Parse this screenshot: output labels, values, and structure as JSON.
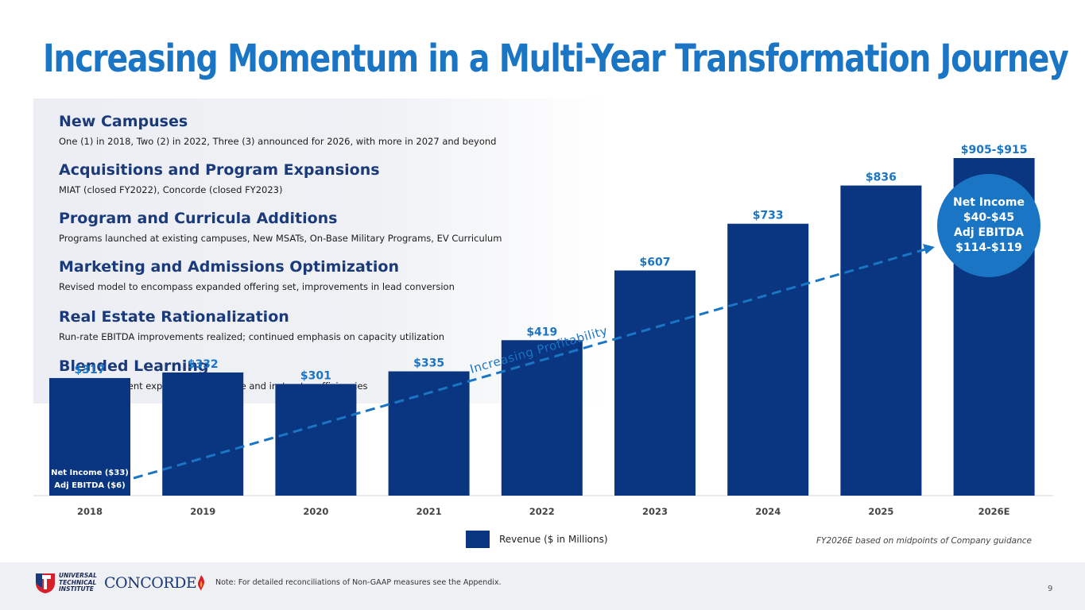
{
  "slide": {
    "title": "Increasing Momentum in a Multi-Year Transformation Journey",
    "page_number": "9"
  },
  "initiatives": [
    {
      "heading": "New Campuses",
      "description": "One (1) in 2018, Two (2) in 2022, Three (3) announced for 2026, with more in 2027 and beyond"
    },
    {
      "heading": "Acquisitions and Program Expansions",
      "description": "MIAT (closed FY2022), Concorde (closed FY2023)"
    },
    {
      "heading": "Program and Curricula Additions",
      "description": "Programs launched at existing campuses, New MSATs, On-Base Military Programs, EV Curriculum"
    },
    {
      "heading": "Marketing and Admissions Optimization",
      "description": "Revised model to encompass expanded offering set, improvements in lead conversion"
    },
    {
      "heading": "Real Estate Rationalization",
      "description": "Run-rate EBITDA improvements realized; continued emphasis on capacity utilization"
    },
    {
      "heading": "Blended Learning",
      "description": "Improving student experience and space and instructor efficiencies"
    }
  ],
  "chart_data": {
    "type": "bar",
    "title": "",
    "categories": [
      "2018",
      "2019",
      "2020",
      "2021",
      "2022",
      "2023",
      "2024",
      "2025",
      "2026E"
    ],
    "values": [
      317,
      332,
      301,
      335,
      419,
      607,
      733,
      836,
      910
    ],
    "data_labels": [
      "$317",
      "$332",
      "$301",
      "$335",
      "$419",
      "$607",
      "$733",
      "$836",
      "$905-$915"
    ],
    "series_name": "Revenue ($ in Millions)",
    "ylim": [
      0,
      910
    ],
    "xlabel": "",
    "ylabel": "",
    "grid": false,
    "legend": "bottom-center",
    "trend_line_label": "Increasing Profitability",
    "bar_color": "#0a3580",
    "label_color": "#1a75c4",
    "trend_color": "#1a75c4"
  },
  "annotations": {
    "start": {
      "net_income": "Net Income ($33)",
      "adj_ebitda": "Adj EBITDA ($6)"
    },
    "end": {
      "net_income_label": "Net Income",
      "net_income_value": "$40-$45",
      "adj_ebitda_label": "Adj EBITDA",
      "adj_ebitda_value": "$114-$119"
    }
  },
  "legend": {
    "label": "Revenue ($ in Millions)",
    "guidance_note": "FY2026E based on midpoints of Company guidance"
  },
  "footer": {
    "note": "Note: For detailed reconciliations of Non-GAAP measures see the Appendix.",
    "uti_logo_text": [
      "UNIVERSAL",
      "TECHNICAL",
      "INSTITUTE"
    ],
    "concorde_logo_text": "CONCORDE"
  },
  "colors": {
    "title": "#1a75c4",
    "heading": "#1b3a7a",
    "bar": "#0a3580",
    "accent": "#1a75c4"
  }
}
